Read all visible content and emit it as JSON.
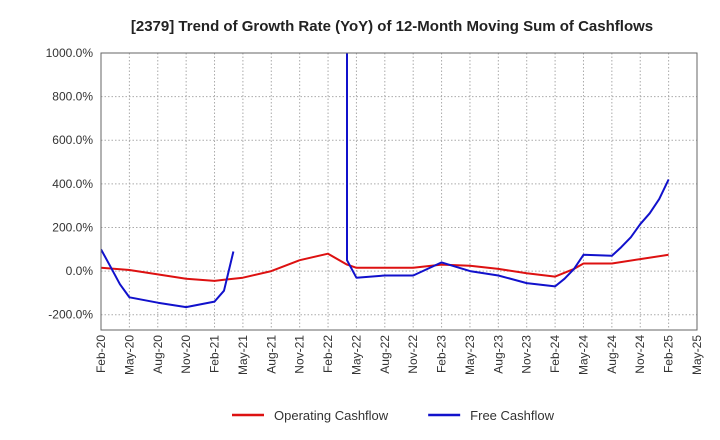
{
  "chart_data": {
    "type": "line",
    "title": "[2379]  Trend of Growth Rate (YoY) of 12-Month Moving Sum of Cashflows",
    "xlabel": "",
    "ylabel": "",
    "x_ticks": [
      "Feb-20",
      "May-20",
      "Aug-20",
      "Nov-20",
      "Feb-21",
      "May-21",
      "Aug-21",
      "Nov-21",
      "Feb-22",
      "May-22",
      "Aug-22",
      "Nov-22",
      "Feb-23",
      "May-23",
      "Aug-23",
      "Nov-23",
      "Feb-24",
      "May-24",
      "Aug-24",
      "Nov-24",
      "Feb-25",
      "May-25"
    ],
    "y_ticks": [
      "1000.0%",
      "800.0%",
      "600.0%",
      "400.0%",
      "200.0%",
      "0.0%",
      "-200.0%"
    ],
    "y_tick_values": [
      1000,
      800,
      600,
      400,
      200,
      0,
      -200
    ],
    "ylim": [
      -270,
      1000
    ],
    "x_range_months": [
      0,
      63
    ],
    "grid": true,
    "legend_position": "bottom",
    "series": [
      {
        "name": "Operating Cashflow",
        "color": "#dd1111",
        "points": [
          [
            "Feb-20",
            15
          ],
          [
            "May-20",
            5
          ],
          [
            "Aug-20",
            -15
          ],
          [
            "Nov-20",
            -35
          ],
          [
            "Feb-21",
            -45
          ],
          [
            "Mar-21",
            -40
          ],
          [
            "May-21",
            -30
          ],
          [
            "Aug-21",
            0
          ],
          [
            "Nov-21",
            50
          ],
          [
            "Feb-22",
            80
          ],
          [
            "Apr-22",
            30
          ],
          [
            "May-22",
            15
          ],
          [
            "Aug-22",
            15
          ],
          [
            "Nov-22",
            15
          ],
          [
            "Feb-23",
            30
          ],
          [
            "May-23",
            25
          ],
          [
            "Aug-23",
            10
          ],
          [
            "Nov-23",
            -10
          ],
          [
            "Feb-24",
            -25
          ],
          [
            "Apr-24",
            10
          ],
          [
            "May-24",
            35
          ],
          [
            "Aug-24",
            35
          ],
          [
            "Nov-24",
            55
          ],
          [
            "Feb-25",
            75
          ]
        ]
      },
      {
        "name": "Free Cashflow",
        "color": "#1111cc",
        "points": [
          [
            "Feb-20",
            100
          ],
          [
            "Mar-20",
            20
          ],
          [
            "Apr-20",
            -60
          ],
          [
            "May-20",
            -120
          ],
          [
            "Aug-20",
            -145
          ],
          [
            "Nov-20",
            -165
          ],
          [
            "Feb-21",
            -140
          ],
          [
            "Mar-21",
            -90
          ],
          [
            "Apr-21",
            90
          ],
          "gap",
          [
            "Apr-22",
            1000
          ],
          [
            "Apr-22",
            50
          ],
          [
            "May-22",
            -30
          ],
          [
            "Aug-22",
            -20
          ],
          [
            "Nov-22",
            -20
          ],
          [
            "Feb-23",
            40
          ],
          [
            "May-23",
            0
          ],
          [
            "Aug-23",
            -20
          ],
          [
            "Nov-23",
            -55
          ],
          [
            "Feb-24",
            -70
          ],
          [
            "Mar-24",
            -35
          ],
          [
            "Apr-24",
            10
          ],
          [
            "May-24",
            75
          ],
          [
            "Aug-24",
            70
          ],
          [
            "Sep-24",
            110
          ],
          [
            "Oct-24",
            155
          ],
          [
            "Nov-24",
            215
          ],
          [
            "Dec-24",
            265
          ],
          [
            "Jan-25",
            330
          ],
          [
            "Feb-25",
            420
          ]
        ]
      }
    ]
  }
}
